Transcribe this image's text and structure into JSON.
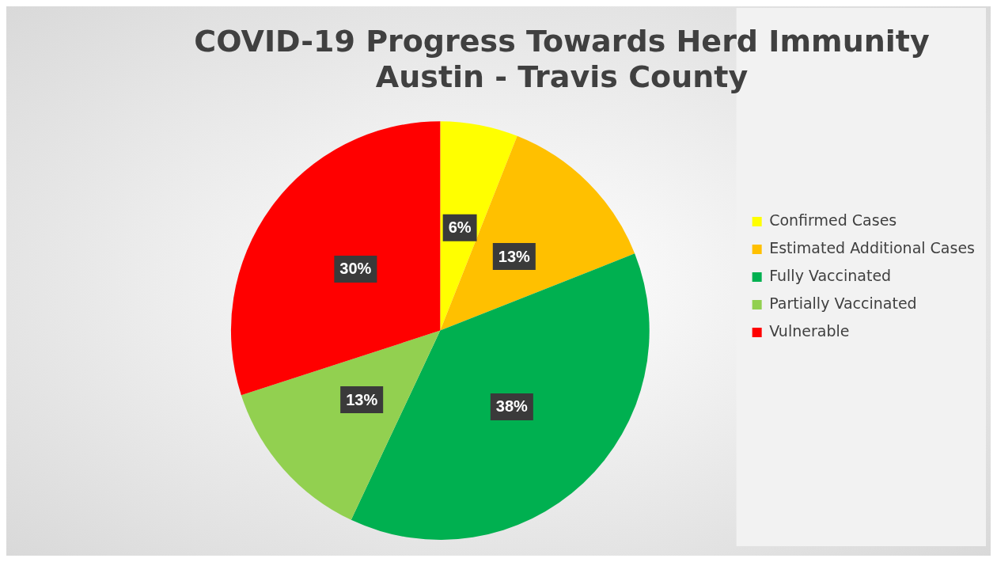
{
  "chart_data": {
    "type": "pie",
    "title": [
      "COVID-19 Progress Towards Herd Immunity",
      "Austin - Travis County"
    ],
    "categories": [
      "Confirmed Cases",
      "Estimated Additional Cases",
      "Fully Vaccinated",
      "Partially Vaccinated",
      "Vulnerable"
    ],
    "values": [
      6,
      13,
      38,
      13,
      30
    ],
    "colors": [
      "#ffff00",
      "#ffc000",
      "#00b050",
      "#92d050",
      "#ff0000"
    ],
    "value_labels": [
      "6%",
      "13%",
      "38%",
      "13%",
      "30%"
    ],
    "legend": "right"
  }
}
